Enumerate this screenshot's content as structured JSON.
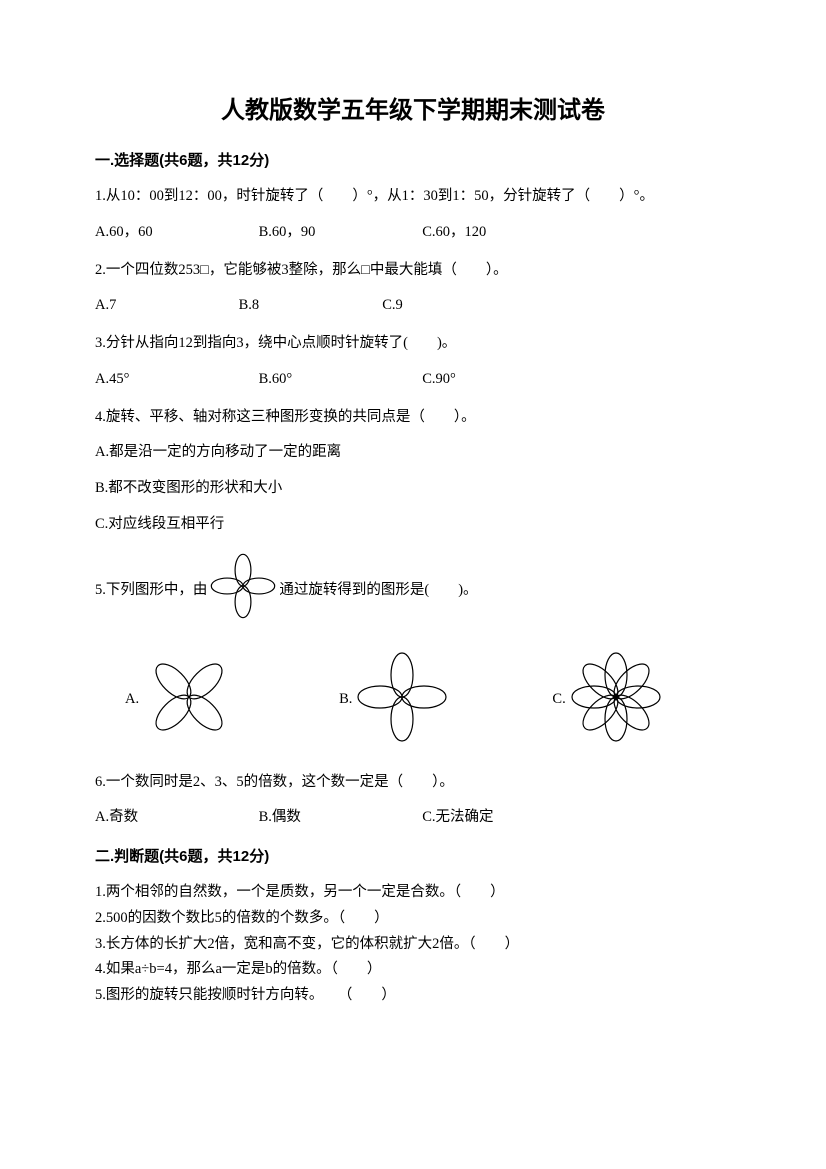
{
  "title": "人教版数学五年级下学期期末测试卷",
  "section1": {
    "header": "一.选择题(共6题，共12分)",
    "q1": {
      "text": "1.从10：00到12：00，时针旋转了（　　）°，从1：30到1：50，分针旋转了（　　）°。",
      "a": "A.60，60",
      "b": "B.60，90",
      "c": "C.60，120"
    },
    "q2": {
      "text": "2.一个四位数253□，它能够被3整除，那么□中最大能填（　　）。",
      "a": "A.7",
      "b": "B.8",
      "c": "C.9"
    },
    "q3": {
      "text": "3.分针从指向12到指向3，绕中心点顺时针旋转了(　　)。",
      "a": "A.45°",
      "b": "B.60°",
      "c": "C.90°"
    },
    "q4": {
      "text": "4.旋转、平移、轴对称这三种图形变换的共同点是（　　）。",
      "a": "A.都是沿一定的方向移动了一定的距离",
      "b": "B.都不改变图形的形状和大小",
      "c": "C.对应线段互相平行"
    },
    "q5": {
      "text_before": "5.下列图形中，由",
      "text_after": "通过旋转得到的图形是(　　)。",
      "a": "A.",
      "b": "B.",
      "c": "C."
    },
    "q6": {
      "text": "6.一个数同时是2、3、5的倍数，这个数一定是（　　）。",
      "a": "A.奇数",
      "b": "B.偶数",
      "c": "C.无法确定"
    }
  },
  "section2": {
    "header": "二.判断题(共6题，共12分)",
    "q1": "1.两个相邻的自然数，一个是质数，另一个一定是合数。（　　）",
    "q2": "2.500的因数个数比5的倍数的个数多。（　　）",
    "q3": "3.长方体的长扩大2倍，宽和高不变，它的体积就扩大2倍。（　　）",
    "q4": "4.如果a÷b=4，那么a一定是b的倍数。（　　）",
    "q5": "5.图形的旋转只能按顺时针方向转。　　（　　）"
  },
  "flower": {
    "base": {
      "size": 72,
      "petals": 4,
      "rotation": 0,
      "stroke": "#000000",
      "fill": "none",
      "stroke_width": 1.2
    },
    "optA": {
      "size": 100,
      "petals": 4,
      "rotation": 45,
      "stroke": "#000000",
      "fill": "none",
      "stroke_width": 1.2
    },
    "optB": {
      "size": 100,
      "petals": 4,
      "rotation": 0,
      "stroke": "#000000",
      "fill": "none",
      "stroke_width": 1.2
    },
    "optC": {
      "size": 100,
      "petals": 8,
      "rotation": 0,
      "stroke": "#000000",
      "fill": "none",
      "stroke_width": 1.2
    }
  }
}
